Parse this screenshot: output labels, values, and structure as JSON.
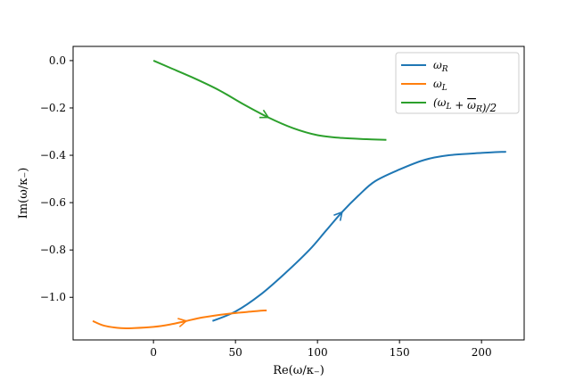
{
  "chart_data": {
    "type": "line",
    "xlabel": "Re(ω/κ₋)",
    "ylabel": "Im(ω/κ₋)",
    "xlim": [
      -49,
      226
    ],
    "ylim": [
      -1.18,
      0.06
    ],
    "xticks": [
      0,
      50,
      100,
      150,
      200
    ],
    "xtick_labels": [
      "0",
      "50",
      "100",
      "150",
      "200"
    ],
    "yticks": [
      0.0,
      -0.2,
      -0.4,
      -0.6,
      -0.8,
      -1.0
    ],
    "ytick_labels": [
      "0.0",
      "−0.2",
      "−0.4",
      "−0.6",
      "−0.8",
      "−1.0"
    ],
    "grid": false,
    "legend_position": "top-right",
    "series": [
      {
        "name": "ωR",
        "color": "#1f77b4",
        "x": [
          36,
          50,
          65,
          80,
          95,
          105,
          115,
          125,
          135,
          150,
          165,
          180,
          200,
          215
        ],
        "y": [
          -1.1,
          -1.06,
          -0.99,
          -0.9,
          -0.8,
          -0.72,
          -0.64,
          -0.57,
          -0.51,
          -0.46,
          -0.42,
          -0.4,
          -0.39,
          -0.385
        ],
        "arrow_at": 115
      },
      {
        "name": "ωL",
        "color": "#ff7f0e",
        "x": [
          -37,
          -30,
          -20,
          -12,
          0,
          10,
          20,
          30,
          45,
          60,
          69
        ],
        "y": [
          -1.1,
          -1.12,
          -1.13,
          -1.13,
          -1.125,
          -1.115,
          -1.1,
          -1.085,
          -1.07,
          -1.06,
          -1.055
        ],
        "arrow_at": 20
      },
      {
        "name": "(ωL + ω̄R)/2",
        "color": "#2ca02c",
        "x": [
          0,
          10,
          25,
          40,
          55,
          70,
          85,
          100,
          115,
          130,
          142
        ],
        "y": [
          0.0,
          -0.03,
          -0.075,
          -0.125,
          -0.185,
          -0.24,
          -0.285,
          -0.315,
          -0.327,
          -0.332,
          -0.335
        ],
        "arrow_at": 70
      }
    ]
  },
  "legend": {
    "entries": [
      {
        "base": "ω",
        "sub": "R",
        "color": "#1f77b4"
      },
      {
        "base": "ω",
        "sub": "L",
        "color": "#ff7f0e"
      },
      {
        "text": "(ωL + ωR)/2",
        "color": "#2ca02c"
      }
    ]
  }
}
